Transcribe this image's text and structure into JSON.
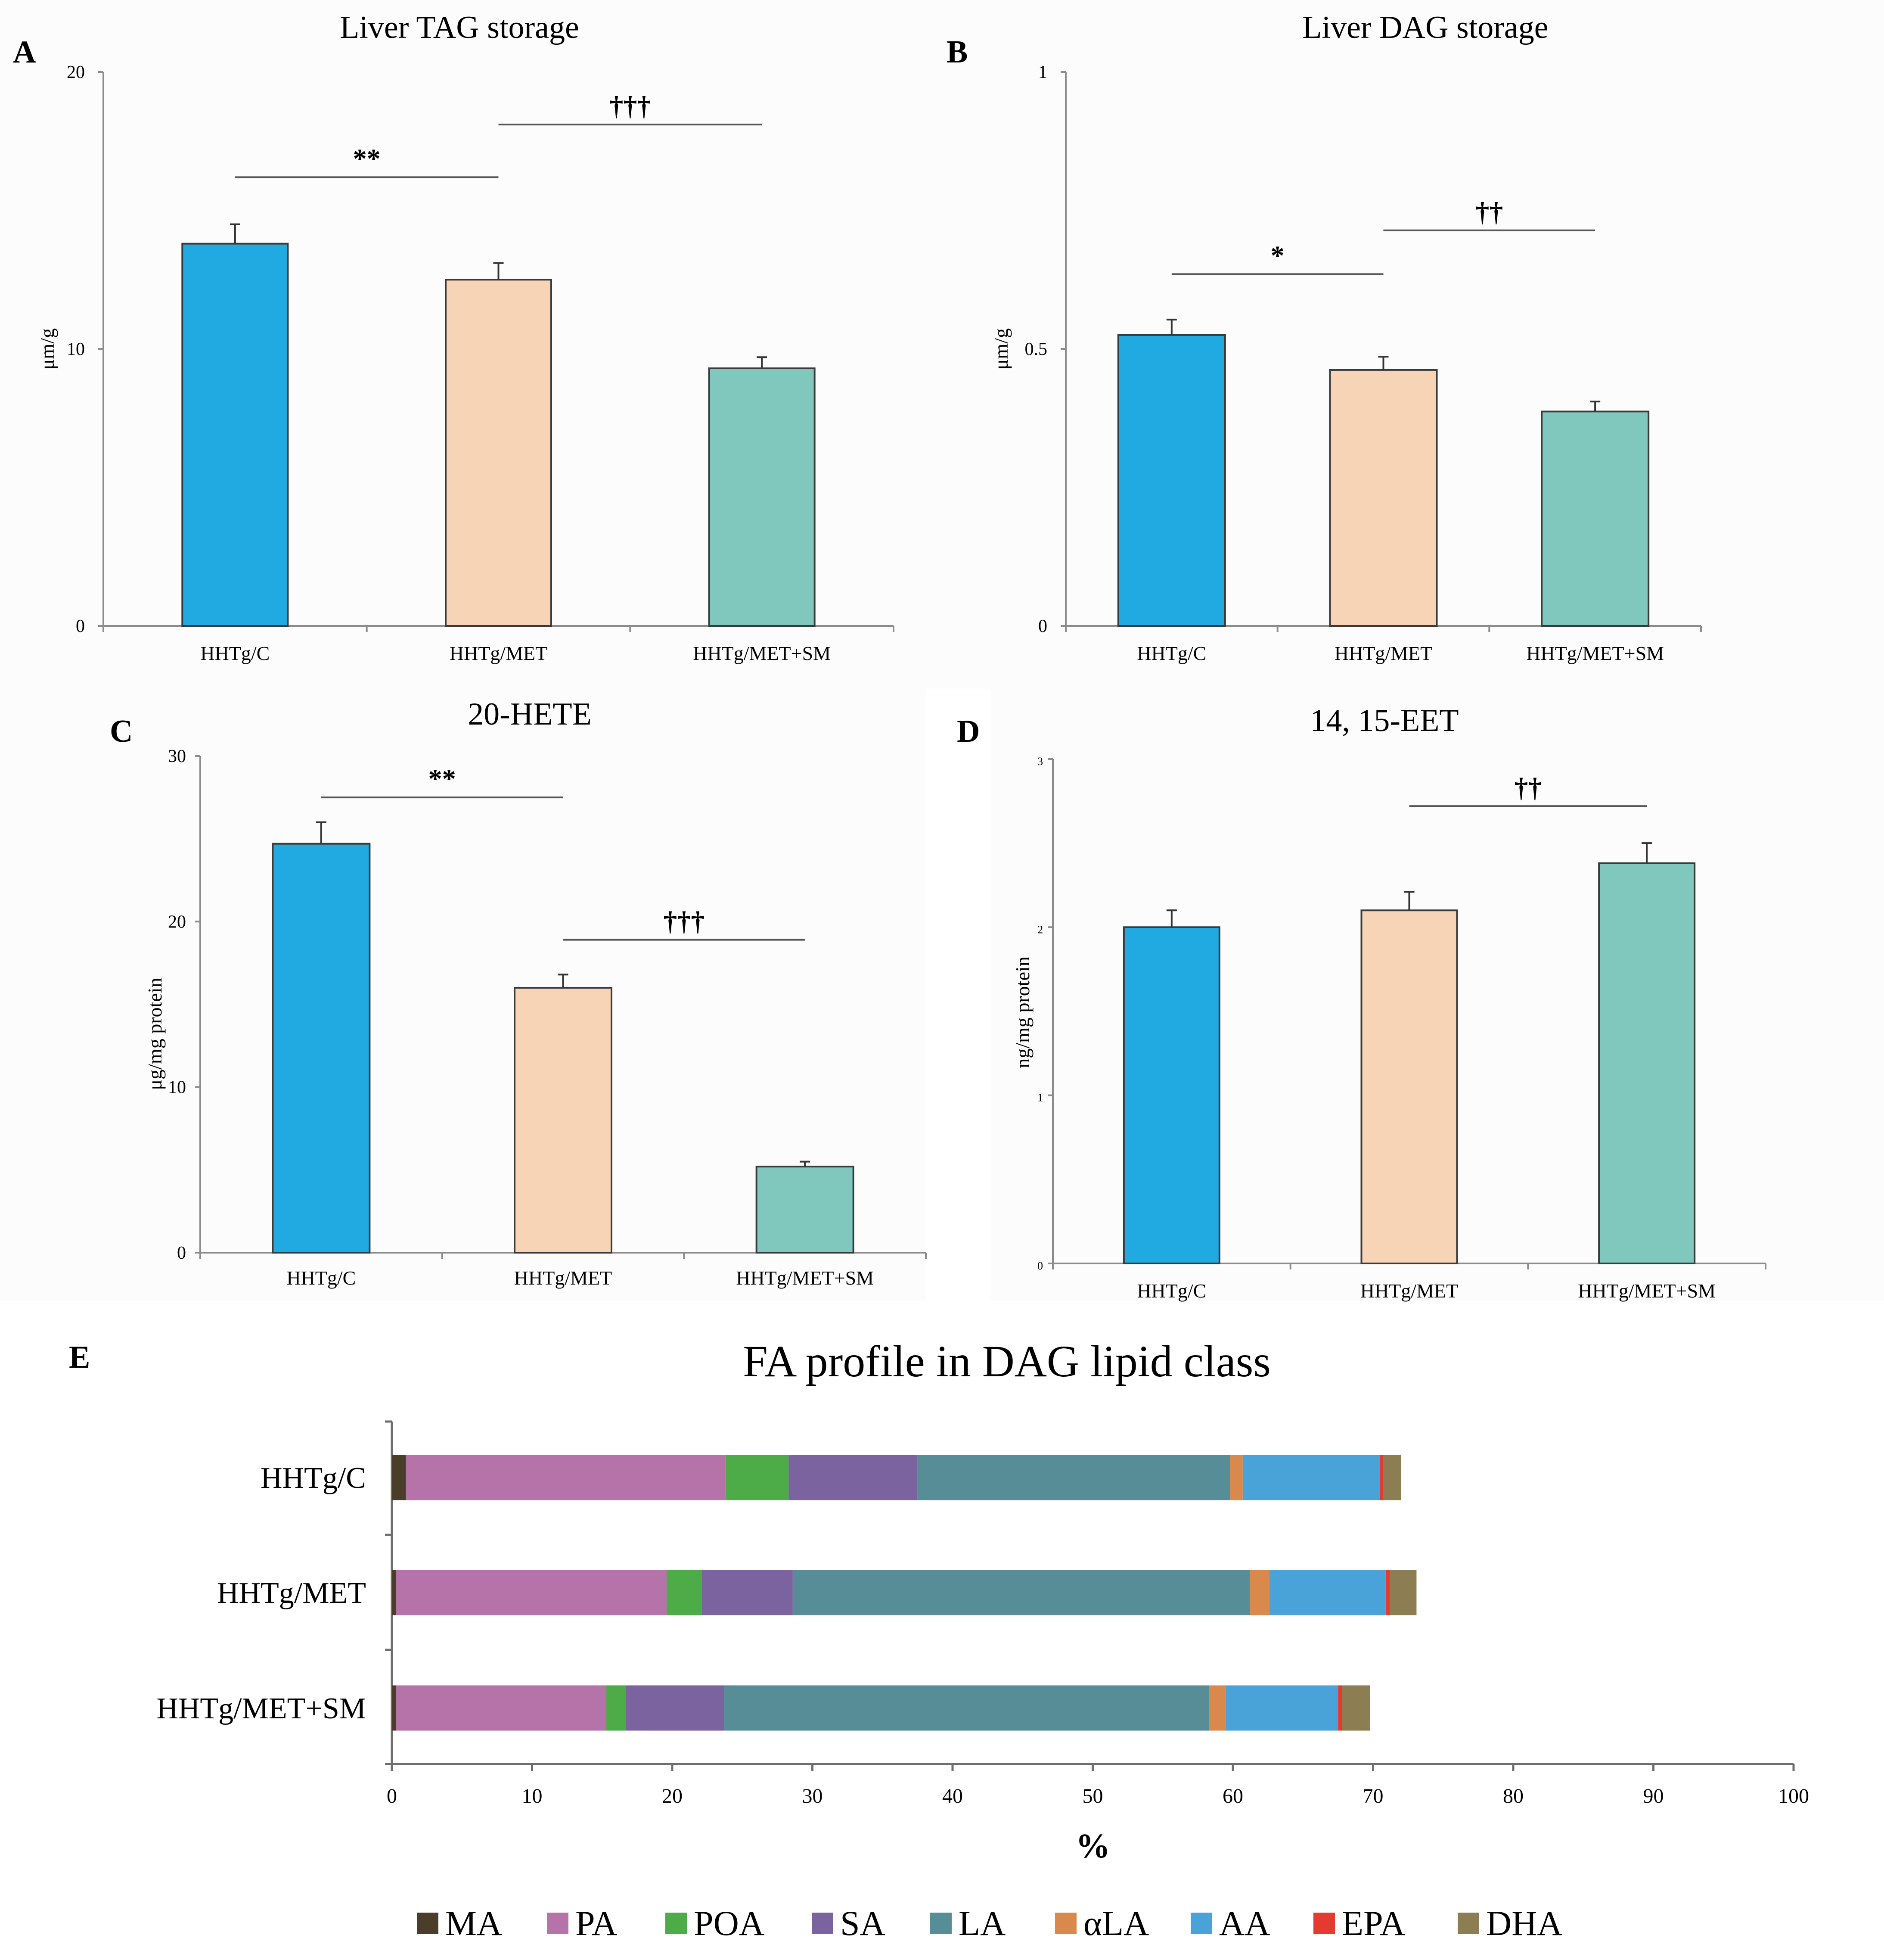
{
  "colors": {
    "HHTg/C": "#21aae2",
    "HHTg/MET": "#f8d4b6",
    "HHTg/MET+SM": "#80c8bd",
    "MA": "#4a3d2a",
    "PA": "#b673a9",
    "POA": "#4dab48",
    "SA": "#7b639f",
    "LA": "#578d96",
    "αLA": "#d8894b",
    "AA": "#4aa3d8",
    "EPA": "#e53a30",
    "DHA": "#8c7d52"
  },
  "chart_data": [
    {
      "id": "A",
      "panel_label": "A",
      "type": "bar",
      "title": "Liver TAG storage",
      "ylabel": "μm/g",
      "xlabel": "",
      "categories": [
        "HHTg/C",
        "HHTg/MET",
        "HHTg/MET+SM"
      ],
      "values": [
        13.8,
        12.5,
        9.3
      ],
      "errors": [
        0.7,
        0.6,
        0.4
      ],
      "ylim": [
        0,
        20
      ],
      "yticks": [
        0,
        10,
        20
      ],
      "ytick_labels": [
        "0",
        "10",
        "20"
      ],
      "significance": [
        {
          "from": 0,
          "to": 1,
          "y": 16.2,
          "label": "**"
        },
        {
          "from": 1,
          "to": 2,
          "y": 18.1,
          "label": "†††"
        }
      ]
    },
    {
      "id": "B",
      "panel_label": "B",
      "type": "bar",
      "title": "Liver DAG storage",
      "ylabel": "μm/g",
      "xlabel": "",
      "categories": [
        "HHTg/C",
        "HHTg/MET",
        "HHTg/MET+SM"
      ],
      "values": [
        0.525,
        0.462,
        0.387
      ],
      "errors": [
        0.028,
        0.024,
        0.018
      ],
      "ylim": [
        0,
        1
      ],
      "yticks": [
        0,
        0.5,
        1
      ],
      "ytick_labels": [
        "0",
        "0.5",
        "1"
      ],
      "significance": [
        {
          "from": 0,
          "to": 1,
          "y": 0.635,
          "label": "*"
        },
        {
          "from": 1,
          "to": 2,
          "y": 0.714,
          "label": "††"
        }
      ]
    },
    {
      "id": "C",
      "panel_label": "C",
      "type": "bar",
      "title": "20-HETE",
      "ylabel": "μg/mg protein",
      "xlabel": "",
      "categories": [
        "HHTg/C",
        "HHTg/MET",
        "HHTg/MET+SM"
      ],
      "values": [
        24.7,
        16.0,
        5.2
      ],
      "errors": [
        1.3,
        0.8,
        0.3
      ],
      "ylim": [
        0,
        30
      ],
      "yticks": [
        0,
        10,
        20,
        30
      ],
      "ytick_labels": [
        "0",
        "10",
        "20",
        "30"
      ],
      "significance": [
        {
          "from": 0,
          "to": 1,
          "y": 27.5,
          "label": "**"
        },
        {
          "from": 1,
          "to": 2,
          "y": 18.9,
          "label": "†††"
        }
      ]
    },
    {
      "id": "D",
      "panel_label": "D",
      "type": "bar",
      "title": "14, 15-EET",
      "ylabel": "ng/mg protein",
      "xlabel": "",
      "categories": [
        "HHTg/C",
        "HHTg/MET",
        "HHTg/MET+SM"
      ],
      "values": [
        2.0,
        2.1,
        2.38
      ],
      "errors": [
        0.1,
        0.11,
        0.12
      ],
      "ylim": [
        0,
        3
      ],
      "yticks": [
        0,
        1,
        2,
        3
      ],
      "ytick_labels": [
        "0",
        "1",
        "2",
        "3"
      ],
      "significance": [
        {
          "from": 1,
          "to": 2,
          "y": 2.72,
          "label": "††"
        }
      ]
    },
    {
      "id": "E",
      "panel_label": "E",
      "type": "bar",
      "orientation": "horizontal",
      "stacked": true,
      "title": "FA profile in DAG lipid class",
      "xlabel": "%",
      "ylabel": "",
      "categories": [
        "HHTg/C",
        "HHTg/MET",
        "HHTg/MET+SM"
      ],
      "xlim": [
        0,
        100
      ],
      "xticks": [
        0,
        10,
        20,
        30,
        40,
        50,
        60,
        70,
        80,
        90,
        100
      ],
      "xtick_labels": [
        "0",
        "10",
        "20",
        "30",
        "40",
        "50",
        "60",
        "70",
        "80",
        "90",
        "100"
      ],
      "legend_position": "bottom",
      "series": [
        {
          "name": "MA",
          "values": [
            1.0,
            0.3,
            0.3
          ]
        },
        {
          "name": "PA",
          "values": [
            22.8,
            19.3,
            15.0
          ]
        },
        {
          "name": "POA",
          "values": [
            4.5,
            2.5,
            1.4
          ]
        },
        {
          "name": "SA",
          "values": [
            9.2,
            6.5,
            7.0
          ]
        },
        {
          "name": "LA",
          "values": [
            22.3,
            32.6,
            34.6
          ]
        },
        {
          "name": "αLA",
          "values": [
            0.9,
            1.4,
            1.2
          ]
        },
        {
          "name": "AA",
          "values": [
            9.8,
            8.3,
            8.0
          ]
        },
        {
          "name": "EPA",
          "values": [
            0.2,
            0.3,
            0.3
          ]
        },
        {
          "name": "DHA",
          "values": [
            1.3,
            1.9,
            2.0
          ]
        }
      ]
    }
  ]
}
